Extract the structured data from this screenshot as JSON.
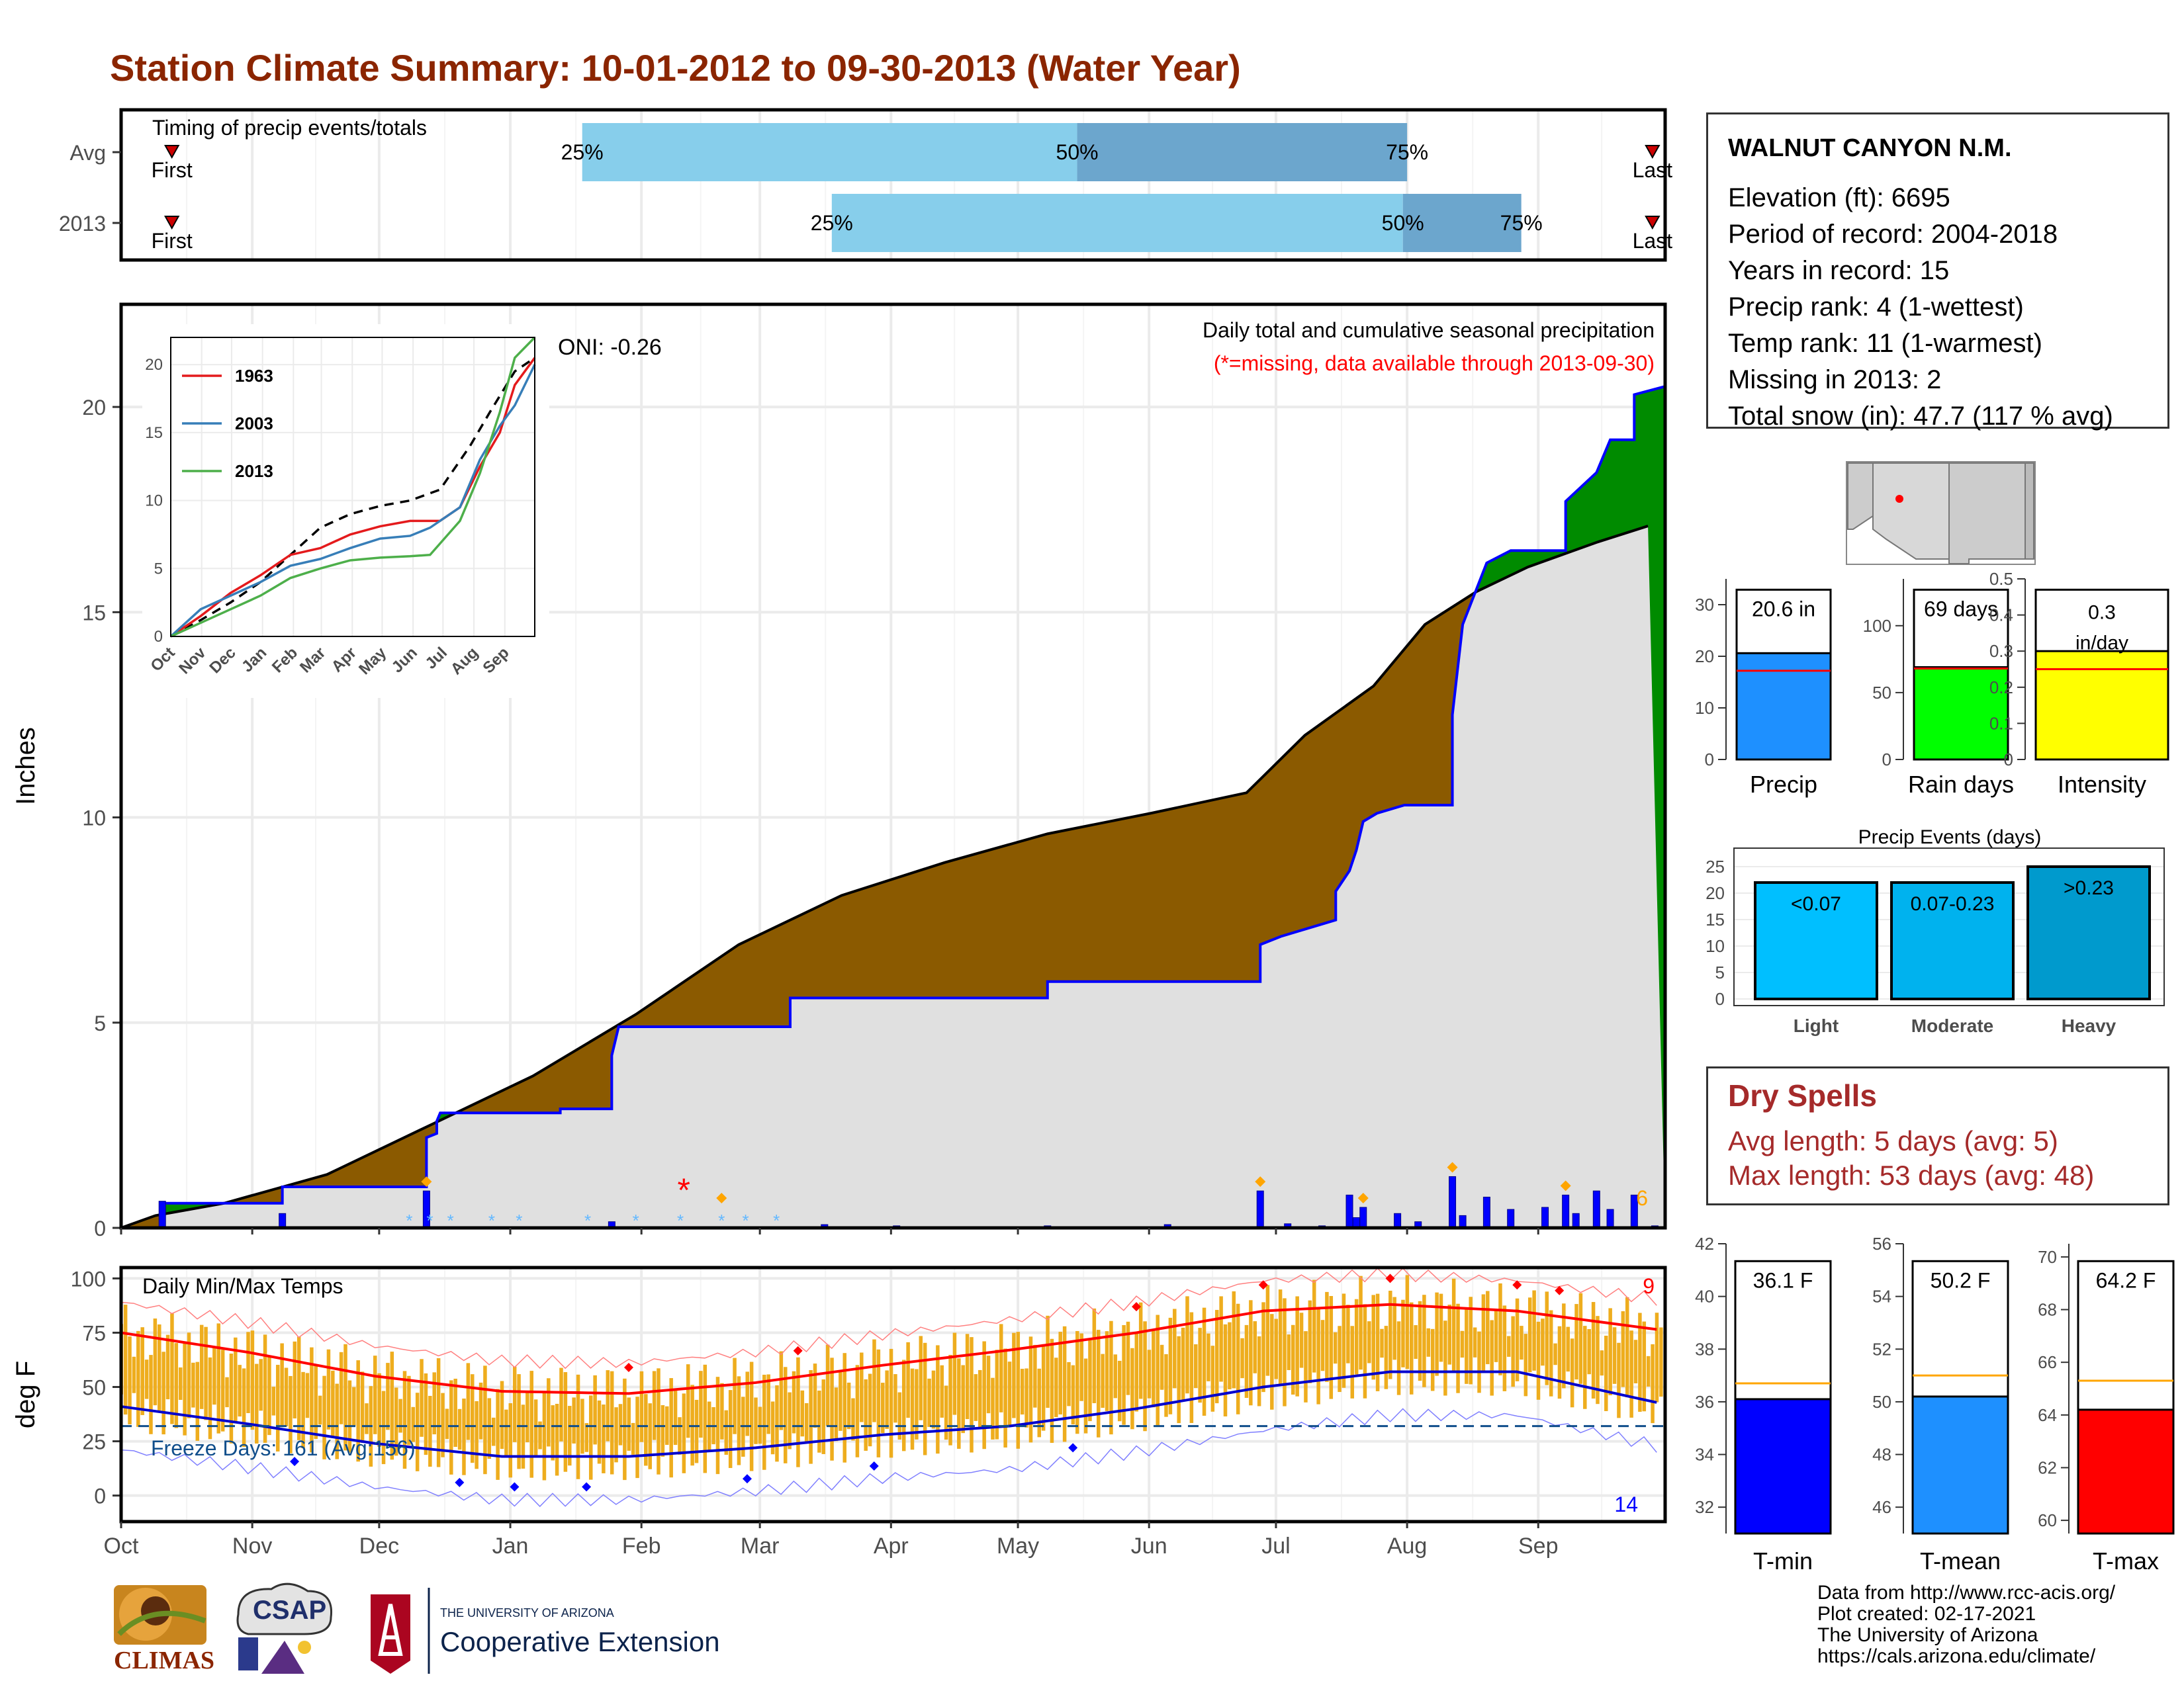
{
  "title": "Station Climate Summary: 10-01-2012 to 09-30-2013 (Water Year)",
  "colors": {
    "title": "#8B2500",
    "brown_fill": "#8B5A00",
    "green_fill": "#008B00",
    "gray_fill": "#E0E0E0",
    "blue_line": "#0000FF",
    "timing_light": "#87CEEB",
    "timing_dark": "#6CA6CD",
    "temp_bar": "#EEAD1E",
    "red": "#FF0000",
    "dry_spell": "#A52A2A"
  },
  "station": {
    "name": "WALNUT CANYON N.M.",
    "rows": [
      "Elevation (ft): 6695",
      "Period of record: 2004-2018",
      "Years in record: 15",
      "Precip rank: 4 (1-wettest)",
      "Temp rank: 11 (1-warmest)",
      "Missing in 2013: 2",
      "Total snow (in): 47.7 (117 % avg)"
    ]
  },
  "dry_spells": {
    "heading": "Dry Spells",
    "avg": "Avg length: 5 days (avg: 5)",
    "max": "Max length: 53 days (avg: 48)"
  },
  "footer": [
    "Data from http://www.rcc-acis.org/",
    "Plot created: 02-17-2021",
    "The University of Arizona",
    "https://cals.arizona.edu/climate/"
  ],
  "logos": {
    "climas": "CLIMAS",
    "csap": "CSAP",
    "ua_small": "THE UNIVERSITY OF ARIZONA",
    "coop": "Cooperative Extension"
  },
  "chart_data": [
    {
      "id": "timing",
      "type": "bar",
      "title": "Timing of precip events/totals",
      "rows": [
        {
          "label": "Avg",
          "p25": "Jan 18",
          "p50": "May 15",
          "p75": "Aug 1",
          "first": "First",
          "last": "Last",
          "marks": [
            "25%",
            "50%",
            "75%"
          ]
        },
        {
          "label": "2013",
          "p25": "Mar 18",
          "p50": "Jul 31",
          "p75": "Aug 30",
          "first": "First",
          "last": "Last",
          "marks": [
            "25%",
            "50%",
            "75%"
          ]
        }
      ],
      "first_day": 12,
      "last_day": 362,
      "p_avg": [
        109,
        226,
        304
      ],
      "p_2013": [
        168,
        303,
        331
      ]
    },
    {
      "id": "precip",
      "type": "area",
      "ylabel": "Inches",
      "ylim": [
        0,
        22.5
      ],
      "yticks": [
        0,
        5,
        10,
        15,
        20
      ],
      "months": [
        "Oct",
        "Nov",
        "Dec",
        "Jan",
        "Feb",
        "Mar",
        "Apr",
        "May",
        "Jun",
        "Jul",
        "Aug",
        "Sep"
      ],
      "oni": "ONI: -0.26",
      "label_main": "Daily total and cumulative seasonal precipitation",
      "label_missing": "(*=missing, data available through 2013-09-30)",
      "corner_count": "6",
      "avg_cum": [
        [
          0,
          0
        ],
        [
          10,
          0.3
        ],
        [
          30,
          0.6
        ],
        [
          60,
          1.3
        ],
        [
          90,
          2.5
        ],
        [
          120,
          3.7
        ],
        [
          150,
          5.2
        ],
        [
          180,
          6.9
        ],
        [
          210,
          8.1
        ],
        [
          240,
          8.9
        ],
        [
          270,
          9.6
        ],
        [
          300,
          10.1
        ],
        [
          328,
          10.6
        ],
        [
          345,
          12.0
        ],
        [
          365,
          13.2
        ],
        [
          380,
          14.7
        ],
        [
          395,
          15.5
        ],
        [
          410,
          16.1
        ],
        [
          430,
          16.7
        ],
        [
          445,
          17.1
        ]
      ],
      "cum_2013": [
        [
          0,
          0
        ],
        [
          12,
          0.0
        ],
        [
          12,
          0.6
        ],
        [
          47,
          0.6
        ],
        [
          47,
          1.0
        ],
        [
          89,
          1.0
        ],
        [
          89,
          1.4
        ],
        [
          89,
          2.2
        ],
        [
          92,
          2.3
        ],
        [
          92,
          2.6
        ],
        [
          93,
          2.8
        ],
        [
          128,
          2.8
        ],
        [
          128,
          2.9
        ],
        [
          143,
          2.9
        ],
        [
          143,
          4.2
        ],
        [
          145,
          4.9
        ],
        [
          195,
          4.9
        ],
        [
          195,
          5.6
        ],
        [
          270,
          5.6
        ],
        [
          270,
          6.0
        ],
        [
          296,
          6.0
        ],
        [
          332,
          6.0
        ],
        [
          332,
          6.9
        ],
        [
          338,
          7.1
        ],
        [
          354,
          7.5
        ],
        [
          354,
          8.2
        ],
        [
          358,
          8.7
        ],
        [
          360,
          9.2
        ],
        [
          362,
          9.9
        ],
        [
          366,
          10.1
        ],
        [
          374,
          10.3
        ],
        [
          388,
          10.3
        ],
        [
          388,
          12.5
        ],
        [
          391,
          14.7
        ],
        [
          398,
          16.2
        ],
        [
          405,
          16.5
        ],
        [
          421,
          16.5
        ],
        [
          421,
          17.7
        ],
        [
          430,
          18.4
        ],
        [
          434,
          19.2
        ],
        [
          441,
          19.2
        ],
        [
          441,
          20.3
        ],
        [
          450,
          20.5
        ],
        [
          450,
          20.6
        ]
      ],
      "daily_2013": [
        [
          12,
          0.65
        ],
        [
          47,
          0.35
        ],
        [
          89,
          0.9
        ],
        [
          143,
          0.15
        ],
        [
          205,
          0.08
        ],
        [
          226,
          0.05
        ],
        [
          270,
          0.05
        ],
        [
          305,
          0.08
        ],
        [
          332,
          0.9
        ],
        [
          340,
          0.1
        ],
        [
          350,
          0.05
        ],
        [
          358,
          0.8
        ],
        [
          360,
          0.25
        ],
        [
          362,
          0.5
        ],
        [
          372,
          0.35
        ],
        [
          378,
          0.15
        ],
        [
          388,
          1.25
        ],
        [
          391,
          0.3
        ],
        [
          398,
          0.75
        ],
        [
          405,
          0.45
        ],
        [
          415,
          0.5
        ],
        [
          421,
          0.8
        ],
        [
          424,
          0.35
        ],
        [
          430,
          0.9
        ],
        [
          434,
          0.45
        ],
        [
          441,
          0.8
        ],
        [
          447,
          0.05
        ]
      ],
      "snow_days": [
        84,
        90,
        96,
        108,
        116,
        136,
        150,
        163,
        175,
        182,
        191
      ],
      "missing_day": 164,
      "diamond_days": [
        89,
        175,
        332,
        362,
        388,
        421
      ],
      "inset": {
        "legend": [
          "1963",
          "2003",
          "2013"
        ],
        "ylim": [
          0,
          22
        ],
        "yticks": [
          0,
          5,
          10,
          15,
          20
        ],
        "months": [
          "Oct",
          "Nov",
          "Dec",
          "Jan",
          "Feb",
          "Mar",
          "Apr",
          "May",
          "Jun",
          "Jul",
          "Aug",
          "Sep"
        ],
        "series_1963": [
          [
            0,
            0
          ],
          [
            30,
            1.5
          ],
          [
            60,
            3.2
          ],
          [
            90,
            4.5
          ],
          [
            120,
            6.0
          ],
          [
            150,
            6.5
          ],
          [
            180,
            7.5
          ],
          [
            210,
            8.1
          ],
          [
            240,
            8.5
          ],
          [
            270,
            8.5
          ],
          [
            290,
            9.5
          ],
          [
            310,
            12.5
          ],
          [
            330,
            15
          ],
          [
            345,
            18.5
          ],
          [
            365,
            20.5
          ]
        ],
        "series_2003": [
          [
            0,
            0
          ],
          [
            30,
            2.0
          ],
          [
            60,
            3.0
          ],
          [
            90,
            4.0
          ],
          [
            120,
            5.2
          ],
          [
            150,
            5.7
          ],
          [
            180,
            6.5
          ],
          [
            210,
            7.2
          ],
          [
            240,
            7.4
          ],
          [
            260,
            8.0
          ],
          [
            290,
            9.5
          ],
          [
            310,
            13.0
          ],
          [
            330,
            15.5
          ],
          [
            345,
            17
          ],
          [
            365,
            20
          ]
        ],
        "series_2013": [
          [
            0,
            0
          ],
          [
            30,
            1.0
          ],
          [
            60,
            2.0
          ],
          [
            90,
            3.0
          ],
          [
            120,
            4.3
          ],
          [
            150,
            5.0
          ],
          [
            180,
            5.6
          ],
          [
            210,
            5.8
          ],
          [
            240,
            5.9
          ],
          [
            260,
            6.0
          ],
          [
            290,
            8.5
          ],
          [
            310,
            12.0
          ],
          [
            330,
            16.5
          ],
          [
            345,
            20.5
          ],
          [
            365,
            22
          ]
        ],
        "series_avg": [
          [
            0,
            0
          ],
          [
            30,
            1.2
          ],
          [
            60,
            2.5
          ],
          [
            90,
            4.0
          ],
          [
            120,
            6.0
          ],
          [
            150,
            8.0
          ],
          [
            180,
            9.0
          ],
          [
            210,
            9.6
          ],
          [
            240,
            10.0
          ],
          [
            270,
            10.8
          ],
          [
            300,
            14.0
          ],
          [
            320,
            16.5
          ],
          [
            345,
            19.5
          ],
          [
            365,
            20.5
          ]
        ]
      }
    },
    {
      "id": "temps",
      "type": "bar",
      "title": "Daily Min/Max Temps",
      "ylabel": "deg F",
      "ylim": [
        -12,
        105
      ],
      "yticks": [
        0,
        25,
        50,
        75,
        100
      ],
      "months": [
        "Oct",
        "Nov",
        "Dec",
        "Jan",
        "Feb",
        "Mar",
        "Apr",
        "May",
        "Jun",
        "Jul",
        "Aug",
        "Sep"
      ],
      "freeze_label": "Freeze Days: 161 (Avg:156)",
      "freeze_line": 32,
      "hot_count": "9",
      "cold_count": "14",
      "avg_max": [
        [
          0,
          75
        ],
        [
          30,
          66
        ],
        [
          60,
          55
        ],
        [
          90,
          48
        ],
        [
          120,
          47
        ],
        [
          150,
          52
        ],
        [
          180,
          60
        ],
        [
          210,
          67
        ],
        [
          240,
          75
        ],
        [
          270,
          85
        ],
        [
          300,
          88
        ],
        [
          330,
          85
        ],
        [
          365,
          76
        ]
      ],
      "avg_min": [
        [
          0,
          41
        ],
        [
          30,
          33
        ],
        [
          60,
          24
        ],
        [
          90,
          18
        ],
        [
          120,
          18
        ],
        [
          150,
          22
        ],
        [
          180,
          28
        ],
        [
          210,
          32
        ],
        [
          240,
          40
        ],
        [
          270,
          50
        ],
        [
          300,
          57
        ],
        [
          330,
          57
        ],
        [
          365,
          42
        ]
      ]
    },
    {
      "id": "gauges_top",
      "type": "bar",
      "panels": [
        {
          "label": "Precip",
          "value": 20.6,
          "text": "20.6 in",
          "avg": 17.2,
          "ylim": [
            0,
            35
          ],
          "yticks": [
            0,
            10,
            20,
            30
          ],
          "color": "#1E90FF"
        },
        {
          "label": "Rain days",
          "value": 69,
          "text": "69 days",
          "avg": 68,
          "ylim": [
            0,
            135
          ],
          "yticks": [
            0,
            50,
            100
          ],
          "color": "#00FF00"
        },
        {
          "label": "Intensity",
          "value": 0.3,
          "text": "0.3 in/day",
          "avg": 0.25,
          "ylim": [
            0,
            0.5
          ],
          "yticks": [
            0.0,
            0.1,
            0.2,
            0.3,
            0.4,
            0.5
          ],
          "color": "#FFFF00"
        }
      ]
    },
    {
      "id": "precip_events",
      "type": "bar",
      "title": "Precip Events (days)",
      "categories": [
        "Light",
        "Moderate",
        "Heavy"
      ],
      "bar_labels": [
        "<0.07",
        "0.07-0.23",
        ">0.23"
      ],
      "values": [
        22,
        22,
        25
      ],
      "ylim": [
        0,
        26
      ],
      "yticks": [
        0,
        5,
        10,
        15,
        20,
        25
      ],
      "colors": [
        "#00BFFF",
        "#00B2EE",
        "#009ACD"
      ]
    },
    {
      "id": "gauges_temp",
      "type": "bar",
      "panels": [
        {
          "label": "T-min",
          "value": 36.1,
          "text": "36.1 F",
          "avg": 36.7,
          "ylim": [
            31,
            42
          ],
          "yticks": [
            32,
            34,
            36,
            38,
            40,
            42
          ],
          "color": "#0000FF"
        },
        {
          "label": "T-mean",
          "value": 50.2,
          "text": "50.2 F",
          "avg": 51.0,
          "ylim": [
            45,
            56
          ],
          "yticks": [
            46,
            48,
            50,
            52,
            54,
            56
          ],
          "color": "#1E90FF"
        },
        {
          "label": "T-max",
          "value": 64.2,
          "text": "64.2 F",
          "avg": 65.3,
          "ylim": [
            59.5,
            70.5
          ],
          "yticks": [
            60,
            62,
            64,
            66,
            68,
            70
          ],
          "color": "#FF0000"
        }
      ]
    }
  ]
}
